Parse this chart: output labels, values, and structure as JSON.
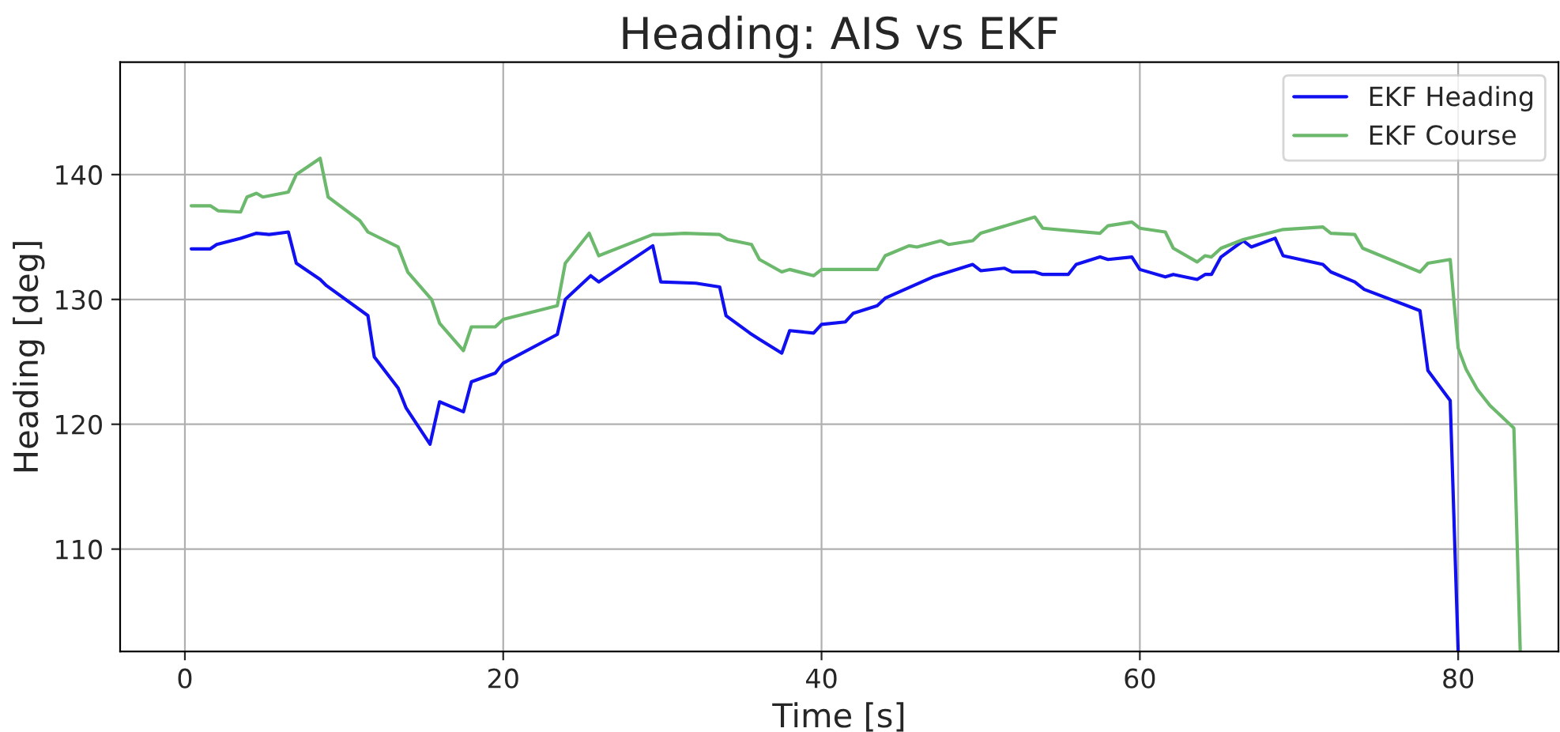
{
  "chart_data": {
    "type": "line",
    "title": "Heading: AIS vs EKF",
    "xlabel": "Time [s]",
    "ylabel": "Heading [deg]",
    "xlim": [
      -4.07,
      86.3
    ],
    "ylim": [
      101.8,
      149
    ],
    "xticks": [
      0,
      20,
      40,
      60,
      80
    ],
    "yticks": [
      110,
      120,
      130,
      140
    ],
    "grid": true,
    "legend": "top right",
    "marker": "none",
    "line_style": "solid",
    "series": [
      {
        "name": "EKF Heading",
        "color": "#1010f0",
        "x": [
          0.4,
          1.6,
          2.0,
          3.5,
          4.5,
          5.3,
          6.5,
          7.0,
          8.5,
          8.9,
          11.5,
          11.9,
          13.4,
          13.9,
          15.4,
          16.0,
          17.5,
          18.0,
          19.5,
          20.0,
          23.4,
          23.9,
          25.5,
          26.0,
          29.4,
          29.9,
          32.1,
          33.6,
          34.0,
          35.5,
          36.1,
          37.5,
          38.0,
          39.5,
          40.0,
          41.5,
          42.0,
          43.5,
          44.0,
          47.0,
          49.5,
          50.0,
          51.5,
          52.0,
          53.4,
          53.9,
          55.5,
          56.0,
          57.5,
          58.0,
          59.5,
          60.0,
          61.6,
          62.1,
          63.6,
          64.1,
          64.5,
          65.1,
          66.5,
          67.0,
          68.5,
          69.0,
          71.5,
          72.0,
          73.5,
          74.1,
          77.6,
          78.1,
          79.5,
          80.0
        ],
        "values": [
          134.05,
          134.05,
          134.4,
          134.9,
          135.3,
          135.2,
          135.4,
          132.9,
          131.6,
          131.1,
          128.7,
          125.4,
          122.9,
          121.3,
          118.4,
          121.8,
          121.0,
          123.4,
          124.1,
          124.9,
          127.2,
          130.0,
          131.9,
          131.4,
          134.3,
          131.4,
          131.3,
          131.0,
          128.7,
          127.3,
          126.8,
          125.7,
          127.5,
          127.3,
          128.0,
          128.2,
          128.9,
          129.5,
          130.1,
          131.8,
          132.8,
          132.3,
          132.5,
          132.2,
          132.2,
          132.0,
          132.0,
          132.8,
          133.4,
          133.2,
          133.4,
          132.4,
          131.8,
          132.0,
          131.6,
          132.0,
          132.0,
          133.4,
          134.7,
          134.2,
          134.9,
          133.5,
          132.8,
          132.2,
          131.4,
          130.8,
          129.1,
          124.3,
          121.9,
          101.8
        ]
      },
      {
        "name": "EKF Course",
        "color": "#6cb86c",
        "x": [
          0.4,
          1.6,
          2.1,
          3.5,
          3.9,
          4.5,
          4.9,
          6.5,
          7.0,
          8.5,
          9.0,
          11.0,
          11.5,
          13.4,
          14.0,
          15.5,
          16.0,
          17.5,
          18.0,
          19.5,
          20.0,
          23.4,
          23.9,
          25.4,
          26.0,
          29.4,
          30.0,
          31.4,
          33.6,
          34.1,
          35.6,
          36.1,
          37.5,
          38.0,
          39.5,
          40.0,
          42.0,
          43.5,
          44.0,
          45.5,
          46.0,
          47.5,
          48.0,
          49.5,
          50.0,
          53.4,
          53.9,
          57.5,
          58.0,
          59.5,
          60.0,
          61.6,
          62.1,
          63.6,
          64.1,
          64.5,
          65.1,
          66.5,
          69.0,
          71.5,
          72.0,
          73.5,
          74.0,
          77.6,
          78.1,
          79.5,
          80.0,
          80.5,
          81.2,
          82.0,
          83.5,
          83.9
        ],
        "values": [
          137.5,
          137.5,
          137.1,
          137.0,
          138.2,
          138.5,
          138.2,
          138.6,
          140.0,
          141.3,
          138.2,
          136.3,
          135.4,
          134.2,
          132.2,
          130.0,
          128.1,
          125.9,
          127.8,
          127.8,
          128.4,
          129.5,
          132.9,
          135.3,
          133.5,
          135.2,
          135.2,
          135.3,
          135.2,
          134.8,
          134.4,
          133.2,
          132.2,
          132.4,
          131.9,
          132.4,
          132.4,
          132.4,
          133.5,
          134.3,
          134.2,
          134.7,
          134.4,
          134.7,
          135.3,
          136.6,
          135.7,
          135.3,
          135.9,
          136.2,
          135.7,
          135.4,
          134.1,
          133.0,
          133.5,
          133.4,
          134.1,
          134.8,
          135.6,
          135.8,
          135.3,
          135.2,
          134.1,
          132.2,
          132.9,
          133.2,
          126.1,
          124.4,
          122.8,
          121.5,
          119.7,
          101.8
        ]
      }
    ]
  }
}
